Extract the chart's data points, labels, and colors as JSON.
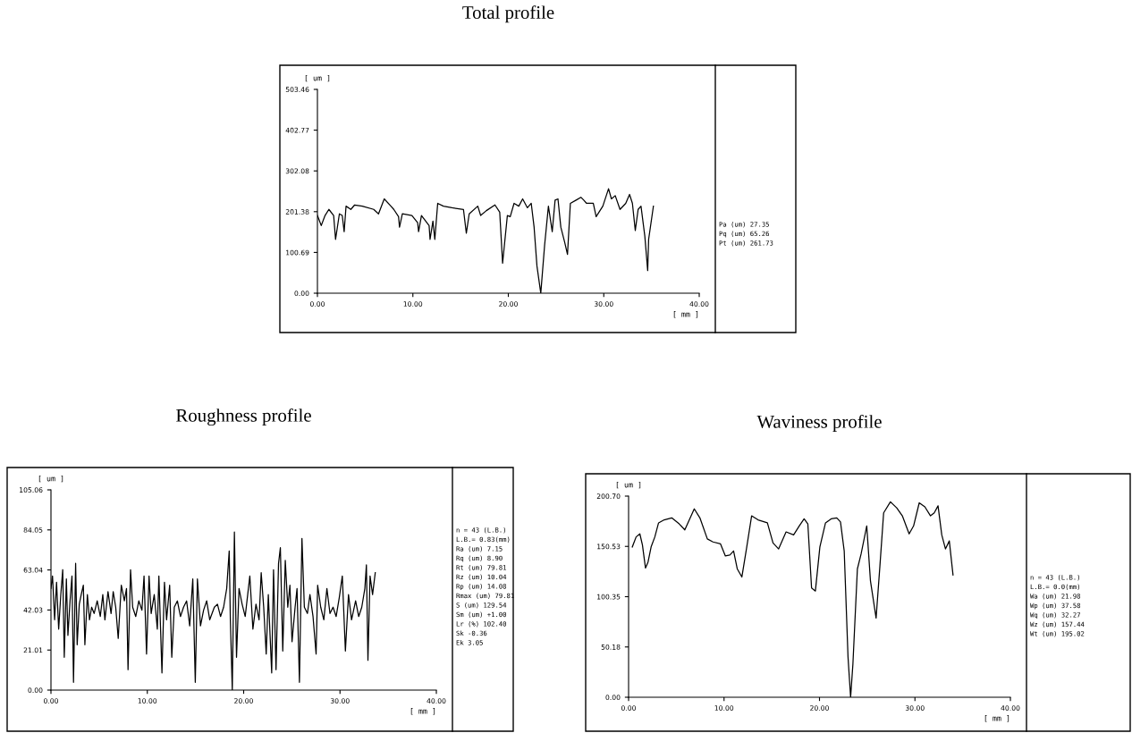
{
  "chart_data": [
    {
      "type": "line",
      "title": "Total profile",
      "xlabel": "[ mm ]",
      "ylabel": "[ um ]",
      "x": [
        0,
        0.4,
        0.8,
        1.2,
        1.7,
        1.9,
        2.3,
        2.6,
        2.8,
        3.0,
        3.5,
        3.9,
        4.7,
        5.9,
        6.4,
        7.0,
        7.7,
        8.0,
        8.5,
        8.6,
        8.9,
        9.9,
        10.5,
        10.6,
        10.9,
        11.7,
        11.8,
        12.1,
        12.3,
        12.6,
        13.2,
        14.1,
        15.3,
        15.6,
        15.9,
        16.8,
        17.1,
        17.7,
        18.6,
        19.1,
        19.4,
        19.9,
        20.2,
        20.6,
        21.1,
        21.5,
        22.0,
        22.4,
        22.7,
        23.0,
        23.4,
        23.8,
        24.2,
        24.6,
        24.9,
        25.2,
        25.5,
        25.9,
        26.2,
        26.5,
        27.1,
        27.6,
        27.9,
        28.2,
        28.9,
        29.2,
        29.9,
        30.5,
        30.8,
        31.2,
        31.7,
        32.3,
        32.7,
        33.0,
        33.3,
        33.6,
        33.9,
        34.3,
        34.6,
        34.7,
        35.2
      ],
      "series": [
        {
          "color": "#000000",
          "values": [
            192,
            167,
            192,
            207,
            192,
            133,
            196,
            192,
            152,
            215,
            207,
            218,
            215,
            207,
            196,
            233,
            215,
            207,
            189,
            163,
            196,
            192,
            174,
            152,
            192,
            167,
            133,
            178,
            133,
            222,
            215,
            211,
            207,
            148,
            196,
            215,
            192,
            204,
            218,
            200,
            74,
            192,
            189,
            222,
            215,
            233,
            211,
            222,
            163,
            67,
            0,
            118,
            215,
            152,
            230,
            233,
            163,
            126,
            96,
            222,
            230,
            237,
            230,
            222,
            222,
            189,
            215,
            258,
            233,
            241,
            207,
            222,
            244,
            222,
            155,
            207,
            215,
            141,
            56,
            133,
            215
          ]
        }
      ],
      "xlim": [
        0,
        40
      ],
      "ylim": [
        0,
        503.46
      ],
      "xticks": [
        {
          "value": 0,
          "label": "0.00"
        },
        {
          "value": 10,
          "label": "10.00"
        },
        {
          "value": 20,
          "label": "20.00"
        },
        {
          "value": 30,
          "label": "30.00"
        },
        {
          "value": 40,
          "label": "40.00"
        }
      ],
      "yticks": [
        {
          "value": 0,
          "label": "0.00"
        },
        {
          "value": 100.69,
          "label": "100.69"
        },
        {
          "value": 201.38,
          "label": "201.38"
        },
        {
          "value": 302.08,
          "label": "302.08"
        },
        {
          "value": 402.77,
          "label": "402.77"
        },
        {
          "value": 503.46,
          "label": "503.46"
        }
      ],
      "grid": false,
      "marker": "none",
      "line_style": "solid",
      "annotations": [
        "Pa (um) 27.35",
        "Pq (um) 65.26",
        "Pt (um) 261.73"
      ]
    },
    {
      "type": "line",
      "title": "Roughness profile",
      "xlabel": "[ mm ]",
      "ylabel": "[ um ]",
      "x": [
        0,
        0.16,
        0.38,
        0.58,
        0.8,
        1.02,
        1.22,
        1.38,
        1.6,
        1.76,
        1.98,
        2.18,
        2.34,
        2.56,
        2.72,
        2.94,
        3.14,
        3.36,
        3.52,
        3.78,
        4.0,
        4.22,
        4.48,
        4.8,
        5.12,
        5.38,
        5.6,
        5.92,
        6.24,
        6.46,
        6.72,
        6.98,
        7.3,
        7.62,
        7.84,
        8.0,
        8.26,
        8.48,
        8.8,
        9.12,
        9.44,
        9.66,
        9.92,
        10.18,
        10.4,
        10.72,
        11.04,
        11.2,
        11.52,
        11.78,
        12.0,
        12.32,
        12.54,
        12.8,
        13.12,
        13.44,
        13.76,
        14.08,
        14.4,
        14.72,
        14.98,
        15.2,
        15.52,
        15.84,
        16.16,
        16.48,
        16.96,
        17.28,
        17.6,
        17.92,
        18.24,
        18.5,
        18.62,
        18.82,
        19.04,
        19.26,
        19.52,
        19.84,
        20.16,
        20.42,
        20.64,
        20.96,
        21.28,
        21.6,
        21.82,
        22.08,
        22.34,
        22.56,
        22.91,
        23.1,
        23.36,
        23.62,
        23.81,
        24.06,
        24.32,
        24.58,
        24.8,
        25.02,
        25.34,
        25.54,
        25.79,
        26.05,
        26.3,
        26.62,
        26.88,
        27.2,
        27.52,
        27.68,
        28.0,
        28.32,
        28.64,
        28.96,
        29.28,
        29.6,
        29.92,
        30.24,
        30.56,
        30.88,
        31.2,
        31.62,
        31.94,
        32.26,
        32.58,
        32.74,
        32.9,
        33.12,
        33.38,
        33.66
      ],
      "series": [
        {
          "color": "#000000",
          "values": [
            53.3,
            59.9,
            36.9,
            56.6,
            32.0,
            50.1,
            63.2,
            17.2,
            58.3,
            28.7,
            46.8,
            59.9,
            4.1,
            66.5,
            23.8,
            45.1,
            50.1,
            55.0,
            23.8,
            50.1,
            36.9,
            43.5,
            40.2,
            46.8,
            38.6,
            50.1,
            36.9,
            51.7,
            40.2,
            51.7,
            43.5,
            27.1,
            55.0,
            46.8,
            53.3,
            10.7,
            63.2,
            43.5,
            38.6,
            46.8,
            41.9,
            59.9,
            18.9,
            59.9,
            40.2,
            50.1,
            32.0,
            59.9,
            9.0,
            56.6,
            36.9,
            55.0,
            17.2,
            43.5,
            46.8,
            38.6,
            43.5,
            46.8,
            33.7,
            58.3,
            4.1,
            58.3,
            33.7,
            41.9,
            46.8,
            36.9,
            43.5,
            45.1,
            38.6,
            43.5,
            53.3,
            73.0,
            36.9,
            0,
            82.9,
            17.2,
            53.3,
            45.1,
            38.6,
            50.1,
            59.9,
            32.0,
            45.1,
            36.9,
            61.6,
            43.5,
            18.9,
            50.1,
            9.0,
            63.2,
            10.7,
            66.5,
            74.7,
            20.5,
            68.1,
            43.5,
            55.0,
            25.4,
            43.5,
            53.3,
            4.1,
            79.6,
            43.5,
            40.2,
            50.1,
            38.6,
            18.9,
            55.0,
            43.5,
            36.9,
            53.3,
            40.2,
            43.5,
            38.6,
            48.4,
            59.9,
            20.5,
            50.1,
            36.9,
            46.8,
            38.6,
            43.5,
            53.3,
            65.7,
            15.6,
            59.9,
            50.1,
            61.6
          ]
        }
      ],
      "xlim": [
        0,
        40
      ],
      "ylim": [
        0,
        105.06
      ],
      "xticks": [
        {
          "value": 0,
          "label": "0.00"
        },
        {
          "value": 10,
          "label": "10.00"
        },
        {
          "value": 20,
          "label": "20.00"
        },
        {
          "value": 30,
          "label": "30.00"
        },
        {
          "value": 40,
          "label": "40.00"
        }
      ],
      "yticks": [
        {
          "value": 0,
          "label": "0.00"
        },
        {
          "value": 21.01,
          "label": "21.01"
        },
        {
          "value": 42.03,
          "label": "42.03"
        },
        {
          "value": 63.04,
          "label": "63.04"
        },
        {
          "value": 84.05,
          "label": "84.05"
        },
        {
          "value": 105.06,
          "label": "105.06"
        }
      ],
      "grid": false,
      "marker": "none",
      "line_style": "solid",
      "annotations": [
        "n = 43 (L.B.)",
        "L.B.= 0.83(mm)",
        "Ra (um) 7.15",
        "Rq (um) 8.90",
        "Rt (um) 79.81",
        "Rz (um) 10.04",
        "Rp (um) 14.08",
        "Rmax (um) 79.81",
        "S (um) 129.54",
        "Sm (um) +1.00",
        "Lr (%) 102.40",
        "Sk -0.36",
        "Ek 3.05"
      ]
    },
    {
      "type": "line",
      "title": "Waviness profile",
      "xlabel": "[ mm ]",
      "ylabel": "[ um ]",
      "x": [
        0.39,
        0.79,
        1.18,
        1.45,
        1.77,
        2.04,
        2.36,
        2.75,
        3.14,
        3.73,
        4.52,
        5.3,
        5.89,
        6.88,
        7.47,
        8.25,
        8.84,
        9.63,
        10.14,
        10.61,
        11.0,
        11.39,
        11.87,
        12.38,
        12.89,
        13.56,
        14.54,
        15.13,
        15.72,
        16.5,
        17.29,
        17.88,
        18.39,
        18.78,
        19.17,
        19.57,
        20.04,
        20.63,
        21.22,
        21.81,
        22.2,
        22.59,
        22.99,
        23.26,
        23.5,
        23.97,
        24.36,
        24.95,
        25.34,
        25.93,
        26.33,
        26.72,
        27.43,
        28.09,
        28.68,
        29.39,
        29.86,
        30.45,
        31.04,
        31.63,
        32.02,
        32.42,
        32.81,
        33.2,
        33.6,
        33.99
      ],
      "series": [
        {
          "color": "#000000",
          "values": [
            150,
            160,
            163,
            152,
            129,
            135,
            150,
            160,
            174,
            177,
            179,
            173,
            167,
            188,
            179,
            158,
            155,
            153,
            141,
            142,
            146,
            128,
            120,
            150,
            181,
            177,
            174,
            154,
            148,
            165,
            162,
            171,
            178,
            173,
            109,
            106,
            150,
            174,
            178,
            179,
            175,
            146,
            40,
            0,
            33,
            128,
            143,
            171,
            116,
            79,
            131,
            184,
            195,
            189,
            181,
            163,
            171,
            194,
            190,
            181,
            184,
            191,
            162,
            148,
            156,
            122
          ]
        }
      ],
      "xlim": [
        0,
        40
      ],
      "ylim": [
        0,
        200.7
      ],
      "xticks": [
        {
          "value": 0,
          "label": "0.00"
        },
        {
          "value": 10,
          "label": "10.00"
        },
        {
          "value": 20,
          "label": "20.00"
        },
        {
          "value": 30,
          "label": "30.00"
        },
        {
          "value": 40,
          "label": "40.00"
        }
      ],
      "yticks": [
        {
          "value": 0,
          "label": "0.00"
        },
        {
          "value": 50.18,
          "label": "50.18"
        },
        {
          "value": 100.35,
          "label": "100.35"
        },
        {
          "value": 150.53,
          "label": "150.53"
        },
        {
          "value": 200.7,
          "label": "200.70"
        }
      ],
      "grid": false,
      "marker": "none",
      "line_style": "solid",
      "annotations": [
        "n = 43 (L.B.)",
        "L.B.= 0.0(mm)",
        "Wa (um) 21.98",
        "Wp (um) 37.58",
        "Wq (um) 32.27",
        "Wz (um) 157.44",
        "Wt (um) 195.02"
      ]
    }
  ]
}
